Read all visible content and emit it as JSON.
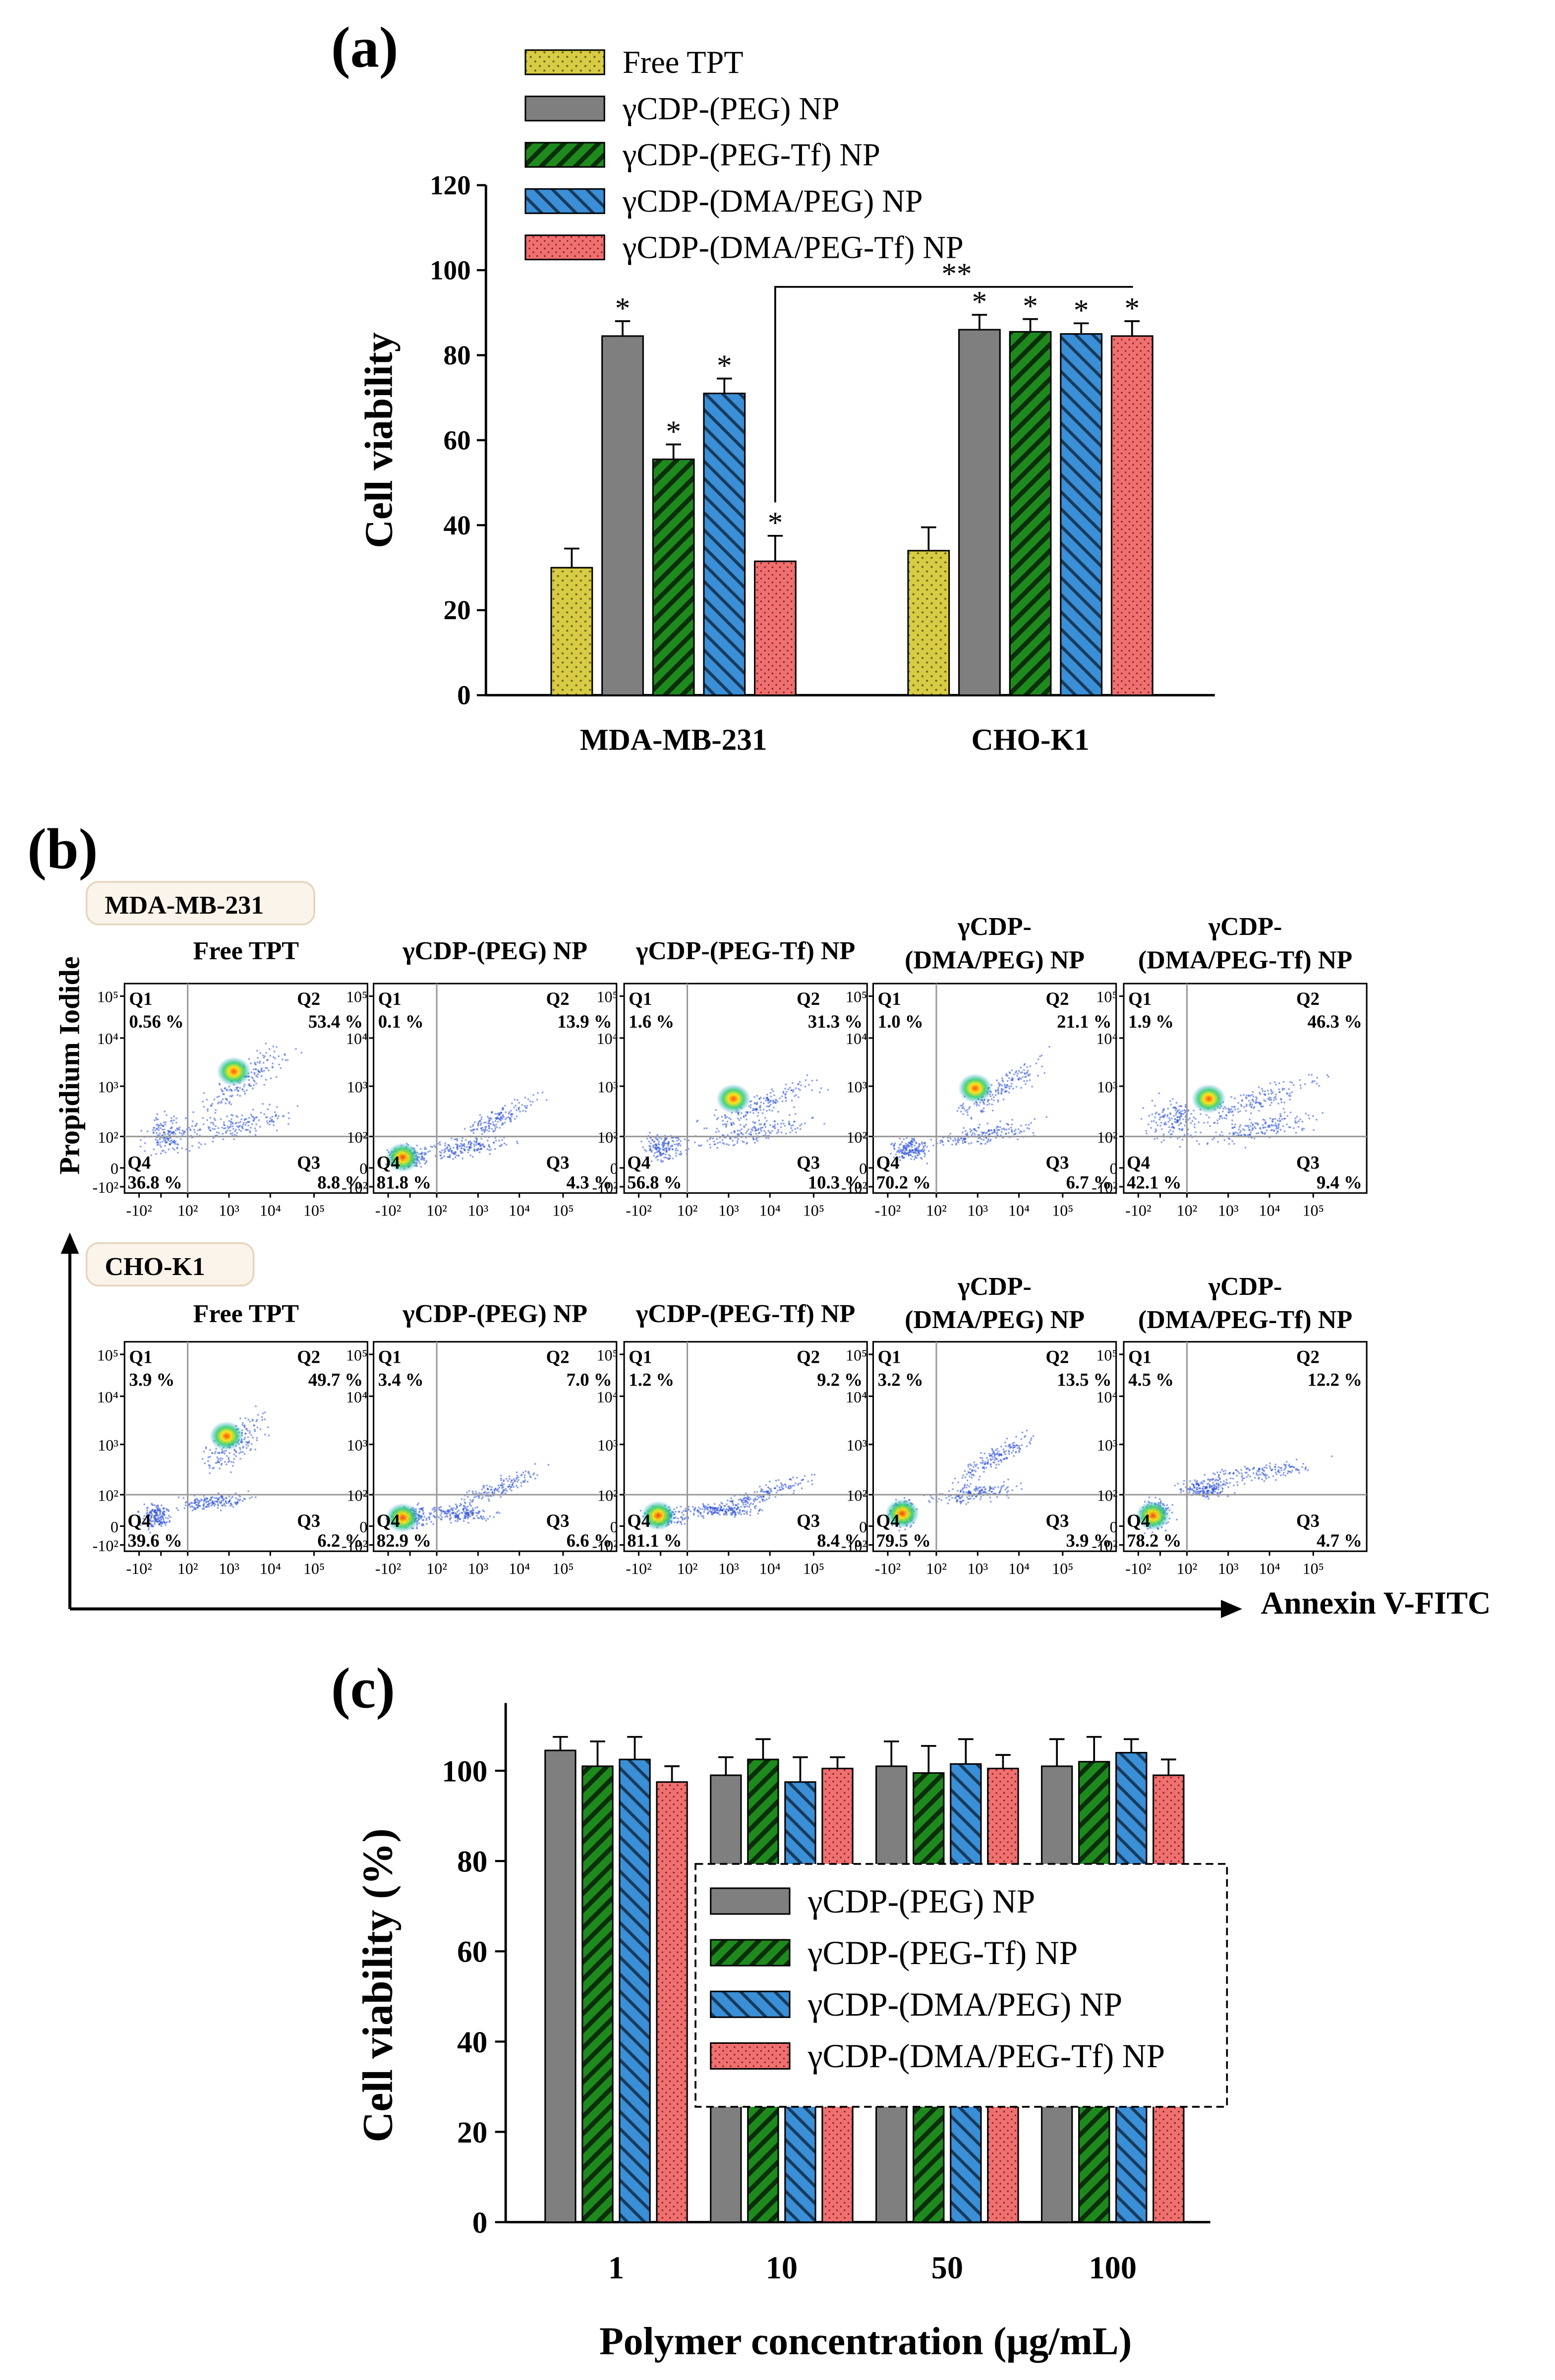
{
  "colors": {
    "free_tpt": "#d8cc44",
    "peg": "#7f7f7f",
    "peg_tf": "#1e8a1e",
    "dma_peg": "#3a8fd6",
    "dma_peg_tf": "#f07070",
    "gate_line": "#999999",
    "dots": "#2a4fd8"
  },
  "chart_data": [
    {
      "id": "a",
      "panel_label": "(a)",
      "type": "bar",
      "ylabel": "Cell viability",
      "ylim": [
        0,
        120
      ],
      "yticks": [
        "0",
        "20",
        "40",
        "60",
        "80",
        "100",
        "120"
      ],
      "categories": [
        "MDA-MB-231",
        "CHO-K1"
      ],
      "series": [
        {
          "name": "Free TPT",
          "values": [
            30,
            34
          ],
          "errors": [
            4.5,
            5.5
          ],
          "stars": [
            "",
            ""
          ]
        },
        {
          "name": "γCDP-(PEG) NP",
          "values": [
            84.5,
            86
          ],
          "errors": [
            3.5,
            3.5
          ],
          "stars": [
            "*",
            "*"
          ]
        },
        {
          "name": "γCDP-(PEG-Tf) NP",
          "values": [
            55.5,
            85.5
          ],
          "errors": [
            3.5,
            3
          ],
          "stars": [
            "*",
            "*"
          ]
        },
        {
          "name": "γCDP-(DMA/PEG) NP",
          "values": [
            71,
            85
          ],
          "errors": [
            3.5,
            2.5
          ],
          "stars": [
            "*",
            "*"
          ]
        },
        {
          "name": "γCDP-(DMA/PEG-Tf) NP",
          "values": [
            31.5,
            84.5
          ],
          "errors": [
            6,
            3.5
          ],
          "stars": [
            "*",
            "*"
          ]
        }
      ],
      "significance": {
        "label": "**",
        "from": "MDA-MB-231 / γCDP-(DMA/PEG-Tf) NP",
        "to": "CHO-K1 / γCDP-(DMA/PEG-Tf) NP"
      }
    },
    {
      "id": "b",
      "panel_label": "(b)",
      "type": "scatter",
      "ylabel": "Propidium Iodide",
      "xlabel": "Annexin V-FITC",
      "axis_ticks": {
        "x": [
          "-10²",
          "0",
          "10²",
          "10³",
          "10⁴",
          "10⁵"
        ],
        "y": [
          "-10²",
          "0",
          "10²",
          "10³",
          "10⁴",
          "10⁵"
        ]
      },
      "quadrant_names": [
        "Q1",
        "Q2",
        "Q3",
        "Q4"
      ],
      "rows": [
        {
          "cell_line": "MDA-MB-231",
          "plots": [
            {
              "title": [
                "Free TPT"
              ],
              "Q1": "0.56 %",
              "Q2": "53.4 %",
              "Q3": "8.8 %",
              "Q4": "36.8 %"
            },
            {
              "title": [
                "γCDP-(PEG) NP"
              ],
              "Q1": "0.1 %",
              "Q2": "13.9 %",
              "Q3": "4.3 %",
              "Q4": "81.8 %"
            },
            {
              "title": [
                "γCDP-(PEG-Tf) NP"
              ],
              "Q1": "1.6 %",
              "Q2": "31.3 %",
              "Q3": "10.3 %",
              "Q4": "56.8 %"
            },
            {
              "title": [
                "γCDP-",
                "(DMA/PEG)  NP"
              ],
              "Q1": "1.0 %",
              "Q2": "21.1 %",
              "Q3": "6.7 %",
              "Q4": "70.2 %"
            },
            {
              "title": [
                "γCDP-",
                "(DMA/PEG-Tf) NP"
              ],
              "Q1": "1.9 %",
              "Q2": "46.3 %",
              "Q3": "9.4 %",
              "Q4": "42.1 %"
            }
          ]
        },
        {
          "cell_line": "CHO-K1",
          "plots": [
            {
              "title": [
                "Free TPT"
              ],
              "Q1": "3.9 %",
              "Q2": "49.7 %",
              "Q3": "6.2 %",
              "Q4": "39.6 %"
            },
            {
              "title": [
                "γCDP-(PEG) NP"
              ],
              "Q1": "3.4 %",
              "Q2": "7.0 %",
              "Q3": "6.6 %",
              "Q4": "82.9 %"
            },
            {
              "title": [
                "γCDP-(PEG-Tf) NP"
              ],
              "Q1": "1.2 %",
              "Q2": "9.2 %",
              "Q3": "8.4 %",
              "Q4": "81.1 %"
            },
            {
              "title": [
                "γCDP-",
                "(DMA/PEG) NP"
              ],
              "Q1": "3.2 %",
              "Q2": "13.5 %",
              "Q3": "3.9 %",
              "Q4": "79.5 %"
            },
            {
              "title": [
                "γCDP-",
                "(DMA/PEG-Tf) NP"
              ],
              "Q1": "4.5 %",
              "Q2": "12.2 %",
              "Q3": "4.7 %",
              "Q4": "78.2 %"
            }
          ]
        }
      ]
    },
    {
      "id": "c",
      "panel_label": "(c)",
      "type": "bar",
      "ylabel": "Cell viability (%)",
      "xlabel": "Polymer concentration (μg/mL)",
      "ylim": [
        0,
        115
      ],
      "yticks": [
        "0",
        "20",
        "40",
        "60",
        "80",
        "100"
      ],
      "categories": [
        "1",
        "10",
        "50",
        "100"
      ],
      "series": [
        {
          "name": "γCDP-(PEG) NP",
          "values": [
            104.5,
            99,
            101,
            101
          ],
          "errors": [
            3,
            4,
            5.5,
            6
          ]
        },
        {
          "name": "γCDP-(PEG-Tf) NP",
          "values": [
            101,
            102.5,
            99.5,
            102
          ],
          "errors": [
            5.5,
            4.5,
            6,
            5.5
          ]
        },
        {
          "name": "γCDP-(DMA/PEG) NP",
          "values": [
            102.5,
            97.5,
            101.5,
            104
          ],
          "errors": [
            5,
            5.5,
            5.5,
            3
          ]
        },
        {
          "name": "γCDP-(DMA/PEG-Tf) NP",
          "values": [
            97.5,
            100.5,
            100.5,
            99
          ],
          "errors": [
            3.5,
            2.5,
            3,
            3.5
          ]
        }
      ]
    }
  ]
}
